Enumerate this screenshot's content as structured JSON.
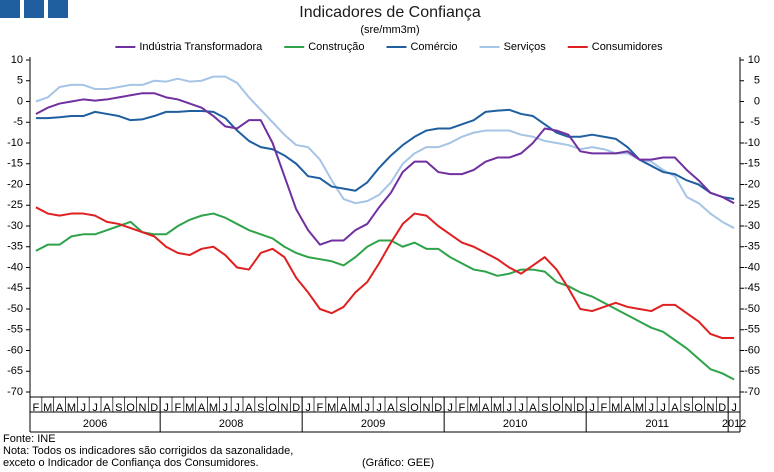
{
  "chart_data": {
    "type": "line",
    "title": "Indicadores de Confiança",
    "subtitle": "(sre/mm3m)",
    "categories": [
      "F",
      "M",
      "A",
      "M",
      "J",
      "J",
      "A",
      "S",
      "O",
      "N",
      "D",
      "J",
      "F",
      "M",
      "A",
      "M",
      "J",
      "J",
      "A",
      "S",
      "O",
      "N",
      "D",
      "J",
      "F",
      "M",
      "A",
      "M",
      "J",
      "J",
      "A",
      "S",
      "O",
      "N",
      "D",
      "J",
      "F",
      "M",
      "A",
      "M",
      "J",
      "J",
      "A",
      "S",
      "O",
      "N",
      "D",
      "J",
      "F",
      "M",
      "A",
      "M",
      "J",
      "J",
      "A",
      "S",
      "O",
      "N",
      "D",
      "J"
    ],
    "x_groups": [
      "2006",
      "2008",
      "2009",
      "2010",
      "2011",
      "2012"
    ],
    "series": [
      {
        "name": "Indústria Transformadora",
        "color": "#7030a0",
        "values": [
          -3,
          -1.5,
          -0.5,
          0,
          0.5,
          0.2,
          0.5,
          1,
          1.5,
          2,
          2,
          1,
          0.5,
          -0.5,
          -1.5,
          -3.5,
          -6,
          -6.5,
          -4.5,
          -4.5,
          -10,
          -18,
          -26,
          -31,
          -34.5,
          -33.5,
          -33.5,
          -31,
          -29.5,
          -25.5,
          -22,
          -17,
          -14.5,
          -14.5,
          -17,
          -17.5,
          -17.5,
          -16.5,
          -14.5,
          -13.5,
          -13.5,
          -12.5,
          -10,
          -6.5,
          -7,
          -8,
          -12,
          -12.5,
          -12.5,
          -12.5,
          -12,
          -14,
          -14,
          -13.5,
          -13.5,
          -16.5,
          -19,
          -22,
          -23,
          -24.5
        ]
      },
      {
        "name": "Construção",
        "color": "#2ea34a",
        "values": [
          -36,
          -34.5,
          -34.5,
          -32.5,
          -32,
          -32,
          -31,
          -30,
          -29,
          -31.5,
          -32,
          -32,
          -30,
          -28.5,
          -27.5,
          -27,
          -28,
          -29.5,
          -31,
          -32,
          -33,
          -35,
          -36.5,
          -37.5,
          -38,
          -38.5,
          -39.5,
          -37.5,
          -35,
          -33.5,
          -33.5,
          -35,
          -34,
          -35.5,
          -35.5,
          -37.5,
          -39,
          -40.5,
          -41,
          -42,
          -41.5,
          -40.5,
          -40.5,
          -41,
          -43.5,
          -44.5,
          -46,
          -47,
          -48.5,
          -50,
          -51.5,
          -53,
          -54.5,
          -55.5,
          -57.5,
          -59.5,
          -62,
          -64.5,
          -65.5,
          -67
        ]
      },
      {
        "name": "Comércio",
        "color": "#1f5fa0",
        "values": [
          -4,
          -4,
          -3.8,
          -3.5,
          -3.5,
          -2.5,
          -3,
          -3.5,
          -4.5,
          -4.3,
          -3.5,
          -2.5,
          -2.5,
          -2.3,
          -2.3,
          -2.5,
          -4,
          -7,
          -9.5,
          -11,
          -11.5,
          -13,
          -15,
          -18,
          -18.5,
          -20.5,
          -21,
          -21.5,
          -19.5,
          -16,
          -13,
          -10.5,
          -8.5,
          -7,
          -6.5,
          -6.5,
          -5.5,
          -4.5,
          -2.5,
          -2.2,
          -2,
          -3,
          -3.5,
          -5.5,
          -7.5,
          -8.5,
          -8.5,
          -8,
          -8.5,
          -9,
          -11,
          -14,
          -15.5,
          -17,
          -17.5,
          -19,
          -20,
          -22,
          -23,
          -23.5
        ]
      },
      {
        "name": "Serviços",
        "color": "#a6c4e6",
        "values": [
          0,
          1,
          3.5,
          4,
          4,
          3,
          3,
          3.5,
          4,
          4,
          5,
          4.8,
          5.5,
          4.8,
          5,
          6,
          6,
          4.5,
          1,
          -2,
          -5,
          -8,
          -10.5,
          -11,
          -14,
          -19,
          -23.5,
          -24.5,
          -24,
          -22.5,
          -19.5,
          -15,
          -12.5,
          -11,
          -11,
          -10,
          -8.5,
          -7.5,
          -7,
          -7,
          -7,
          -8,
          -8.5,
          -9.5,
          -10,
          -10.5,
          -11.5,
          -11,
          -11.5,
          -12.5,
          -12.5,
          -14,
          -14.5,
          -16.5,
          -18,
          -23,
          -24.5,
          -27,
          -29,
          -30.5
        ]
      },
      {
        "name": "Consumidores",
        "color": "#e02020",
        "values": [
          -25.5,
          -27,
          -27.5,
          -27,
          -27,
          -27.5,
          -29,
          -29.5,
          -30.5,
          -31.5,
          -32.5,
          -35,
          -36.5,
          -37,
          -35.5,
          -35,
          -37,
          -40,
          -40.5,
          -36.5,
          -35.5,
          -37.5,
          -42.5,
          -46,
          -50,
          -51,
          -49.5,
          -46,
          -43.5,
          -39,
          -34,
          -29.5,
          -27,
          -27.5,
          -30,
          -32,
          -34,
          -35,
          -36.5,
          -38,
          -40,
          -41.5,
          -39.5,
          -37.5,
          -40.5,
          -45,
          -50,
          -50.5,
          -49.5,
          -48.5,
          -49.5,
          -50,
          -50.5,
          -49,
          -49,
          -51,
          -53,
          -56,
          -57,
          -57
        ]
      }
    ],
    "ylim": [
      -70,
      10
    ],
    "yticks": [
      10,
      5,
      0,
      -5,
      -10,
      -15,
      -20,
      -25,
      -30,
      -35,
      -40,
      -45,
      -50,
      -55,
      -60,
      -65,
      -70
    ],
    "y2lim": [
      -70,
      10
    ],
    "y2ticks": [
      10,
      5,
      0,
      -5,
      -10,
      -15,
      -20,
      -25,
      -30,
      -35,
      -40,
      -45,
      -50,
      -55,
      -60,
      -65,
      -70
    ],
    "legend": "top",
    "notes": [
      "Fonte: INE",
      "Nota: Todos os indicadores são corrigidos da sazonalidade,",
      "exceto o Indicador de Confiança dos Consumidores."
    ],
    "credit": "(Gráfico: GEE)"
  }
}
